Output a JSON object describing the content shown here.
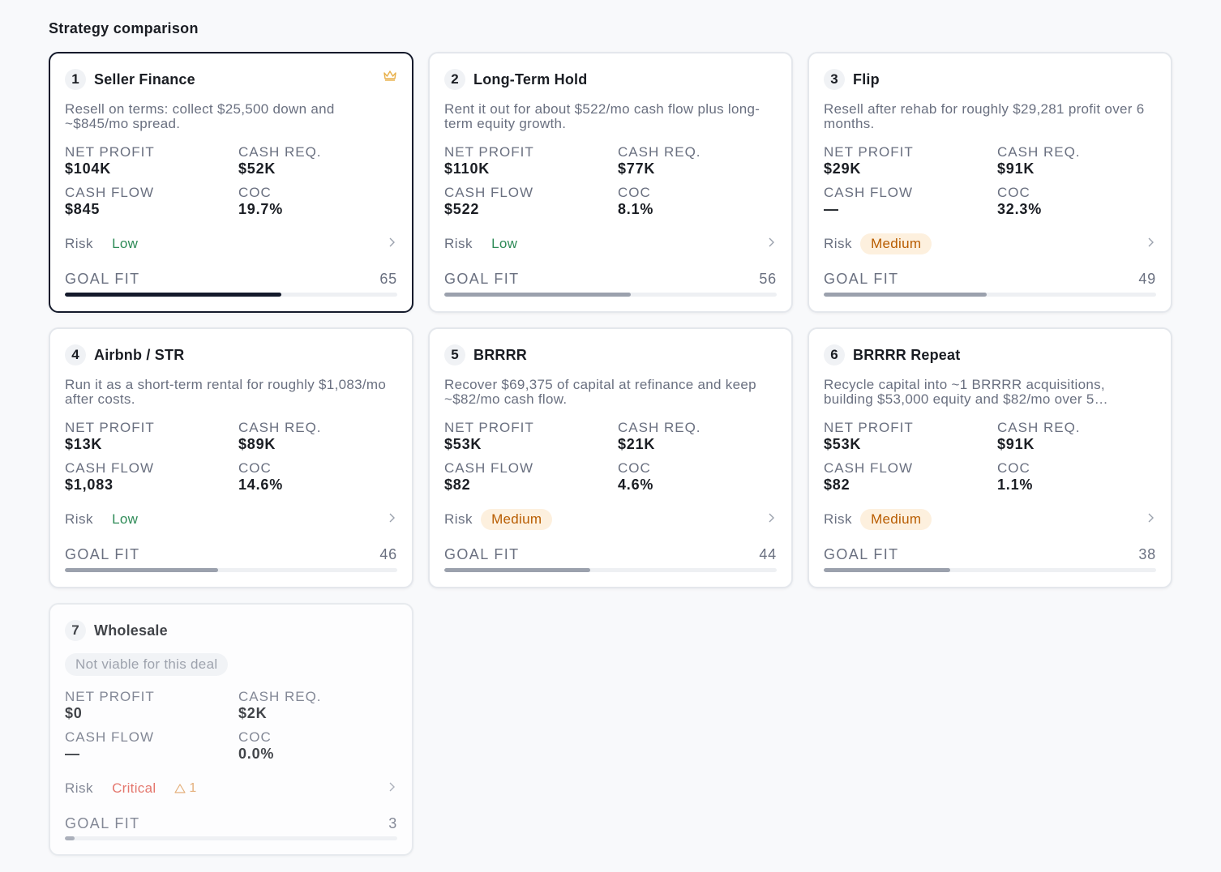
{
  "section_title": "Strategy comparison",
  "labels": {
    "net_profit": "NET PROFIT",
    "cash_req": "CASH REQ.",
    "cash_flow": "CASH FLOW",
    "coc": "COC",
    "risk": "Risk",
    "goal_fit": "GOAL FIT"
  },
  "colors": {
    "selected_border": "#141a2b",
    "risk_low": "#2e8b57",
    "risk_medium": "#b85c00",
    "risk_medium_bg": "#fdf0de",
    "risk_critical": "#e05a4e",
    "crown": "#e8b04a"
  },
  "strategies": [
    {
      "rank": "1",
      "name": "Seller Finance",
      "description": "Resell on terms: collect $25,500 down and ~$845/mo spread.",
      "net_profit": "$104K",
      "cash_req": "$52K",
      "cash_flow": "$845",
      "coc": "19.7%",
      "risk": "Low",
      "goal_fit": "65",
      "goal_fit_value": 65
    },
    {
      "rank": "2",
      "name": "Long-Term Hold",
      "description": "Rent it out for about $522/mo cash flow plus long-term equity growth.",
      "net_profit": "$110K",
      "cash_req": "$77K",
      "cash_flow": "$522",
      "coc": "8.1%",
      "risk": "Low",
      "goal_fit": "56",
      "goal_fit_value": 56
    },
    {
      "rank": "3",
      "name": "Flip",
      "description": "Resell after rehab for roughly $29,281 profit over 6 months.",
      "net_profit": "$29K",
      "cash_req": "$91K",
      "cash_flow": "—",
      "coc": "32.3%",
      "risk": "Medium",
      "goal_fit": "49",
      "goal_fit_value": 49
    },
    {
      "rank": "4",
      "name": "Airbnb / STR",
      "description": "Run it as a short-term rental for roughly $1,083/mo after costs.",
      "net_profit": "$13K",
      "cash_req": "$89K",
      "cash_flow": "$1,083",
      "coc": "14.6%",
      "risk": "Low",
      "goal_fit": "46",
      "goal_fit_value": 46
    },
    {
      "rank": "5",
      "name": "BRRRR",
      "description": "Recover $69,375 of capital at refinance and keep ~$82/mo cash flow.",
      "net_profit": "$53K",
      "cash_req": "$21K",
      "cash_flow": "$82",
      "coc": "4.6%",
      "risk": "Medium",
      "goal_fit": "44",
      "goal_fit_value": 44
    },
    {
      "rank": "6",
      "name": "BRRRR Repeat",
      "description": "Recycle capital into ~1 BRRRR acquisitions, building $53,000 equity and $82/mo over 5…",
      "net_profit": "$53K",
      "cash_req": "$91K",
      "cash_flow": "$82",
      "coc": "1.1%",
      "risk": "Medium",
      "goal_fit": "38",
      "goal_fit_value": 38
    },
    {
      "rank": "7",
      "name": "Wholesale",
      "not_viable": "Not viable for this deal",
      "net_profit": "$0",
      "cash_req": "$2K",
      "cash_flow": "—",
      "coc": "0.0%",
      "risk": "Critical",
      "warning_count": "1",
      "goal_fit": "3",
      "goal_fit_value": 3
    }
  ]
}
